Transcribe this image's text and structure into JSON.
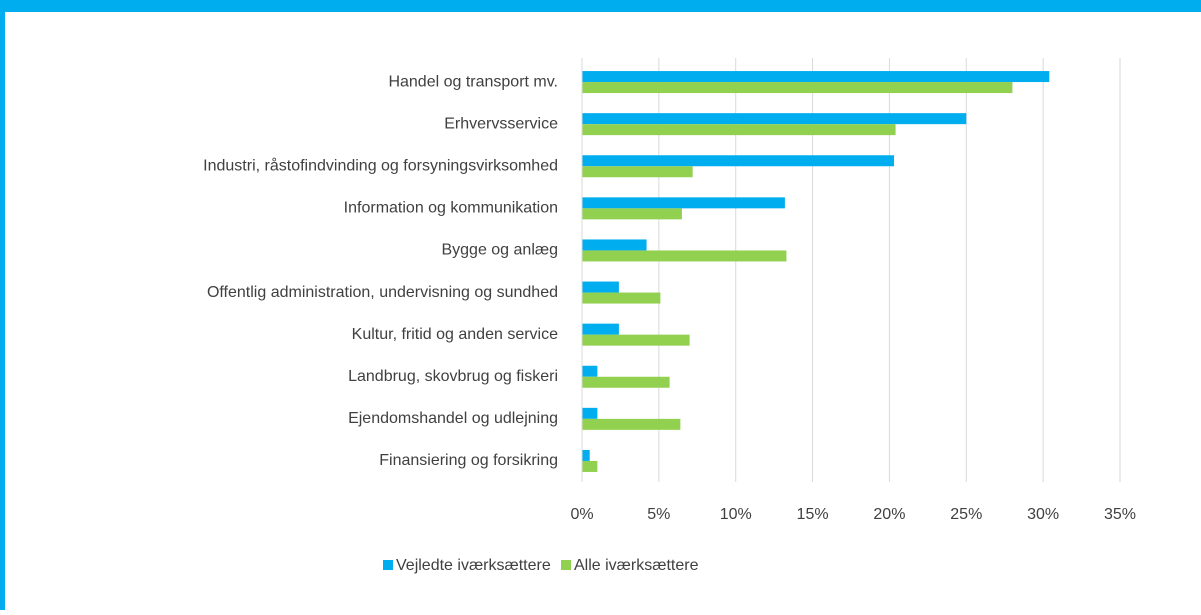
{
  "chart_data": {
    "type": "barh",
    "categories": [
      "Handel og transport mv.",
      "Erhvervsservice",
      "Industri, råstofindvinding og forsyningsvirksomhed",
      "Information og kommunikation",
      "Bygge og anlæg",
      "Offentlig administration, undervisning og sundhed",
      "Kultur, fritid og anden service",
      "Landbrug, skovbrug og fiskeri",
      "Ejendomshandel og udlejning",
      "Finansiering og forsikring"
    ],
    "series": [
      {
        "name": "Vejledte iværksættere",
        "color": "#00adef",
        "values": [
          30.4,
          25.0,
          20.3,
          13.2,
          4.2,
          2.4,
          2.4,
          1.0,
          1.0,
          0.5
        ]
      },
      {
        "name": "Alle iværksættere",
        "color": "#92d050",
        "values": [
          28.0,
          20.4,
          7.2,
          6.5,
          13.3,
          5.1,
          7.0,
          5.7,
          6.4,
          1.0
        ]
      }
    ],
    "xlim": [
      0,
      35
    ],
    "xticks": [
      {
        "value": 0,
        "label": "0%"
      },
      {
        "value": 5,
        "label": "5%"
      },
      {
        "value": 10,
        "label": "10%"
      },
      {
        "value": 15,
        "label": "15%"
      },
      {
        "value": 20,
        "label": "20%"
      },
      {
        "value": 25,
        "label": "25%"
      },
      {
        "value": 30,
        "label": "30%"
      },
      {
        "value": 35,
        "label": "35%"
      }
    ],
    "grid": true,
    "legend": "bottom"
  }
}
